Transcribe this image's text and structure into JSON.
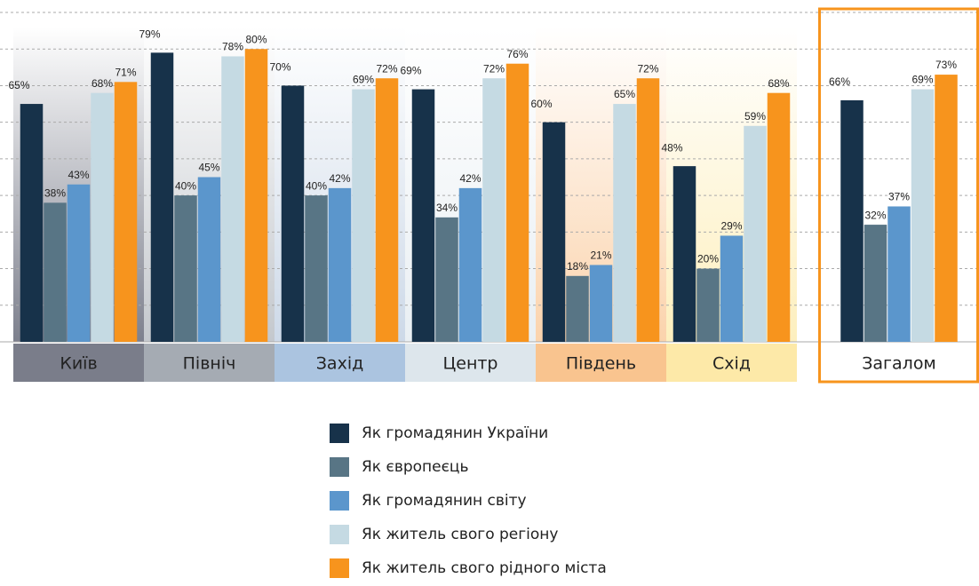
{
  "chart_data": {
    "type": "bar",
    "categories": [
      "Київ",
      "Північ",
      "Захід",
      "Центр",
      "Південь",
      "Схід",
      "Загалом"
    ],
    "series": [
      {
        "name": "Як громадянин України",
        "color": "#17324a",
        "values": [
          65,
          79,
          70,
          69,
          60,
          48,
          66
        ],
        "value_labels": [
          "65%",
          "79%",
          "70%",
          "69%",
          "60%",
          "48%",
          "66%"
        ]
      },
      {
        "name": "Як європеєць",
        "color": "#587585",
        "values": [
          38,
          40,
          40,
          34,
          18,
          20,
          32
        ],
        "value_labels": [
          "38%",
          "40%",
          "40%",
          "34%",
          "18%",
          "20%",
          "32%"
        ]
      },
      {
        "name": "Як громадянин світу",
        "color": "#5b96cc",
        "values": [
          43,
          45,
          42,
          42,
          21,
          29,
          37
        ],
        "value_labels": [
          "43%",
          "45%",
          "42%",
          "42%",
          "21%",
          "29%",
          "37%"
        ]
      },
      {
        "name": "Як житель свого регіону",
        "color": "#c5dae3",
        "values": [
          68,
          78,
          69,
          72,
          65,
          59,
          69
        ],
        "value_labels": [
          "68%",
          "78%",
          "69%",
          "72%",
          "65%",
          "59%",
          "69%"
        ]
      },
      {
        "name": "Як житель свого рідного міста",
        "color": "#f7941d",
        "values": [
          71,
          80,
          72,
          76,
          72,
          68,
          73
        ],
        "value_labels": [
          "71%",
          "80%",
          "72%",
          "76%",
          "72%",
          "68%",
          "73%"
        ]
      }
    ],
    "ylim": [
      0,
      90
    ],
    "yticks": [
      0,
      10,
      20,
      30,
      40,
      50,
      60,
      70,
      80,
      90
    ],
    "grid": true
  }
}
